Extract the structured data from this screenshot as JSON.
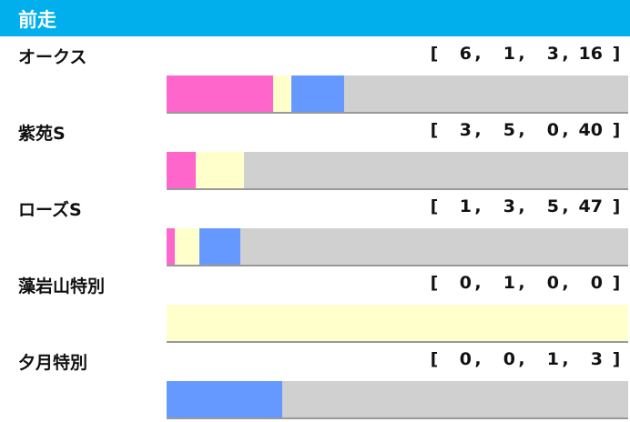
{
  "header": {
    "title": "前走"
  },
  "chart_data": {
    "type": "bar",
    "stacked": true,
    "orientation": "horizontal",
    "categories": [
      "オークス",
      "紫苑S",
      "ローズS",
      "藻岩山特別",
      "夕月特別"
    ],
    "series": [
      {
        "values": [
          6,
          3,
          1,
          0,
          0
        ],
        "color": "#ff66cc"
      },
      {
        "values": [
          1,
          5,
          3,
          1,
          0
        ],
        "color": "#ffffcc"
      },
      {
        "values": [
          3,
          0,
          5,
          0,
          1
        ],
        "color": "#6699ff"
      },
      {
        "values": [
          16,
          40,
          47,
          0,
          3
        ],
        "color": "#d0d0d0"
      }
    ]
  }
}
